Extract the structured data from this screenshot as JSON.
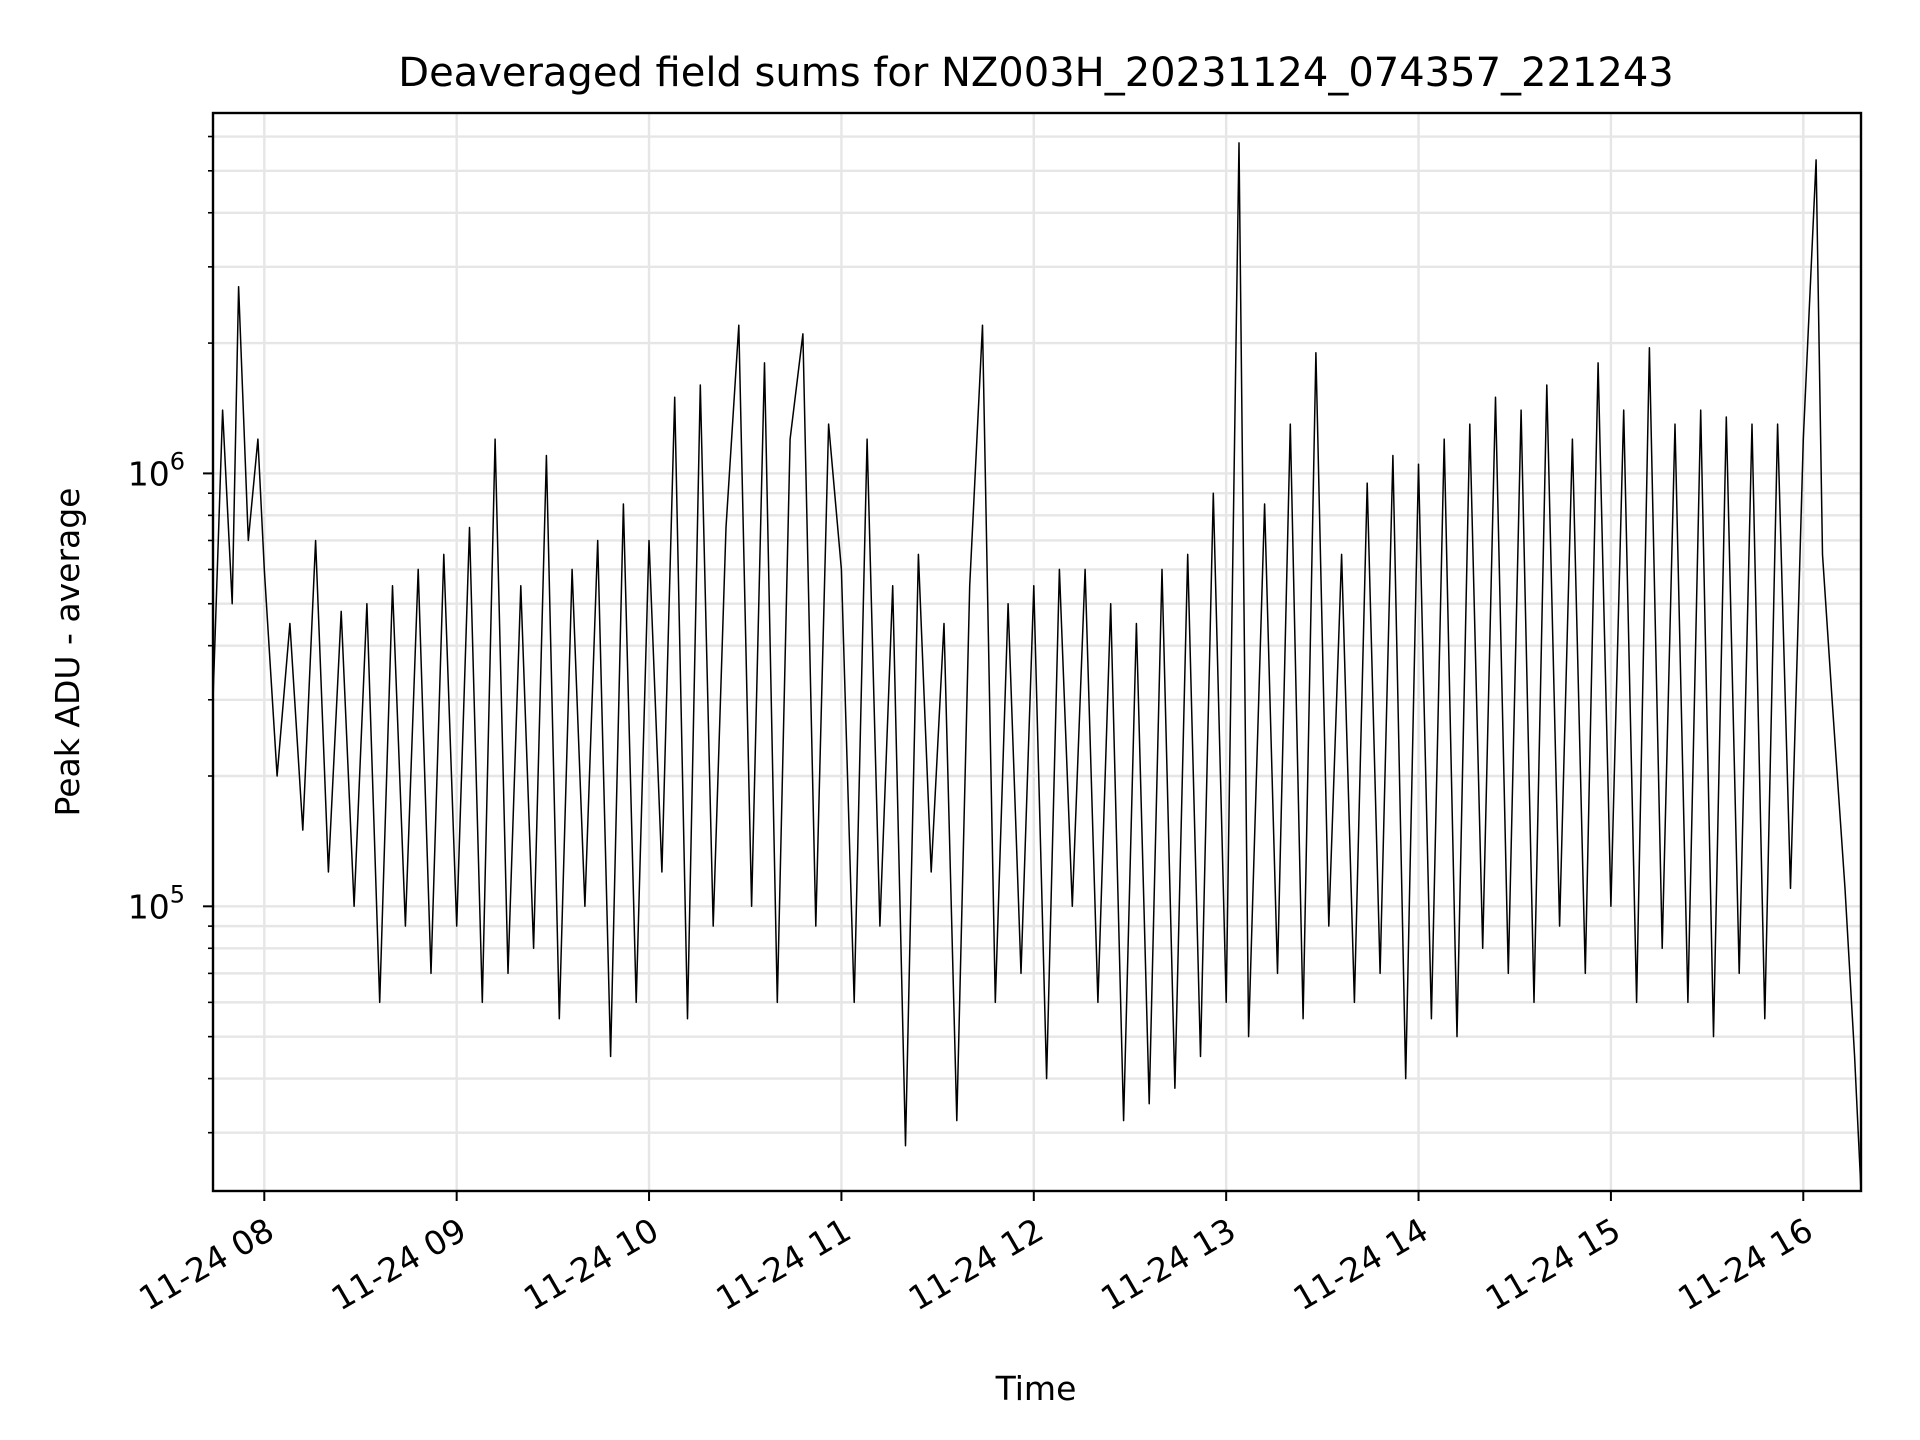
{
  "chart_data": {
    "type": "line",
    "title": "Deaveraged field sums for NZ003H_20231124_074357_221243",
    "xlabel": "Time",
    "ylabel": "Peak ADU - average",
    "y_scale": "log",
    "ylim": [
      22000,
      6800000
    ],
    "xlim": [
      "2023-11-24 07:44",
      "2023-11-24 16:18"
    ],
    "x_ticks": [
      {
        "value": "2023-11-24 08:00",
        "label": "11-24 08"
      },
      {
        "value": "2023-11-24 09:00",
        "label": "11-24 09"
      },
      {
        "value": "2023-11-24 10:00",
        "label": "11-24 10"
      },
      {
        "value": "2023-11-24 11:00",
        "label": "11-24 11"
      },
      {
        "value": "2023-11-24 12:00",
        "label": "11-24 12"
      },
      {
        "value": "2023-11-24 13:00",
        "label": "11-24 13"
      },
      {
        "value": "2023-11-24 14:00",
        "label": "11-24 14"
      },
      {
        "value": "2023-11-24 15:00",
        "label": "11-24 15"
      },
      {
        "value": "2023-11-24 16:00",
        "label": "11-24 16"
      }
    ],
    "y_ticks": [
      {
        "value": 100000,
        "base": "10",
        "exp": "5"
      },
      {
        "value": 1000000,
        "base": "10",
        "exp": "6"
      }
    ],
    "grid": true,
    "line_color": "#000000",
    "series": [
      {
        "x": [
          "2023-11-24 07:44",
          "2023-11-24 07:47",
          "2023-11-24 07:50",
          "2023-11-24 07:52",
          "2023-11-24 07:55",
          "2023-11-24 07:58",
          "2023-11-24 08:00",
          "2023-11-24 08:04",
          "2023-11-24 08:08",
          "2023-11-24 08:12",
          "2023-11-24 08:16",
          "2023-11-24 08:20",
          "2023-11-24 08:24",
          "2023-11-24 08:28",
          "2023-11-24 08:32",
          "2023-11-24 08:36",
          "2023-11-24 08:40",
          "2023-11-24 08:44",
          "2023-11-24 08:48",
          "2023-11-24 08:52",
          "2023-11-24 08:56",
          "2023-11-24 09:00",
          "2023-11-24 09:04",
          "2023-11-24 09:08",
          "2023-11-24 09:12",
          "2023-11-24 09:16",
          "2023-11-24 09:20",
          "2023-11-24 09:24",
          "2023-11-24 09:28",
          "2023-11-24 09:32",
          "2023-11-24 09:36",
          "2023-11-24 09:40",
          "2023-11-24 09:44",
          "2023-11-24 09:48",
          "2023-11-24 09:52",
          "2023-11-24 09:56",
          "2023-11-24 10:00",
          "2023-11-24 10:04",
          "2023-11-24 10:08",
          "2023-11-24 10:12",
          "2023-11-24 10:16",
          "2023-11-24 10:20",
          "2023-11-24 10:24",
          "2023-11-24 10:28",
          "2023-11-24 10:32",
          "2023-11-24 10:36",
          "2023-11-24 10:40",
          "2023-11-24 10:44",
          "2023-11-24 10:48",
          "2023-11-24 10:52",
          "2023-11-24 10:56",
          "2023-11-24 11:00",
          "2023-11-24 11:04",
          "2023-11-24 11:08",
          "2023-11-24 11:12",
          "2023-11-24 11:16",
          "2023-11-24 11:20",
          "2023-11-24 11:24",
          "2023-11-24 11:28",
          "2023-11-24 11:32",
          "2023-11-24 11:36",
          "2023-11-24 11:40",
          "2023-11-24 11:44",
          "2023-11-24 11:48",
          "2023-11-24 11:52",
          "2023-11-24 11:56",
          "2023-11-24 12:00",
          "2023-11-24 12:04",
          "2023-11-24 12:08",
          "2023-11-24 12:12",
          "2023-11-24 12:16",
          "2023-11-24 12:20",
          "2023-11-24 12:24",
          "2023-11-24 12:28",
          "2023-11-24 12:32",
          "2023-11-24 12:36",
          "2023-11-24 12:40",
          "2023-11-24 12:44",
          "2023-11-24 12:48",
          "2023-11-24 12:52",
          "2023-11-24 12:56",
          "2023-11-24 13:00",
          "2023-11-24 13:04",
          "2023-11-24 13:07",
          "2023-11-24 13:12",
          "2023-11-24 13:16",
          "2023-11-24 13:20",
          "2023-11-24 13:24",
          "2023-11-24 13:28",
          "2023-11-24 13:32",
          "2023-11-24 13:36",
          "2023-11-24 13:40",
          "2023-11-24 13:44",
          "2023-11-24 13:48",
          "2023-11-24 13:52",
          "2023-11-24 13:56",
          "2023-11-24 14:00",
          "2023-11-24 14:04",
          "2023-11-24 14:08",
          "2023-11-24 14:12",
          "2023-11-24 14:16",
          "2023-11-24 14:20",
          "2023-11-24 14:24",
          "2023-11-24 14:28",
          "2023-11-24 14:32",
          "2023-11-24 14:36",
          "2023-11-24 14:40",
          "2023-11-24 14:44",
          "2023-11-24 14:48",
          "2023-11-24 14:52",
          "2023-11-24 14:56",
          "2023-11-24 15:00",
          "2023-11-24 15:04",
          "2023-11-24 15:08",
          "2023-11-24 15:12",
          "2023-11-24 15:16",
          "2023-11-24 15:20",
          "2023-11-24 15:24",
          "2023-11-24 15:28",
          "2023-11-24 15:32",
          "2023-11-24 15:36",
          "2023-11-24 15:40",
          "2023-11-24 15:44",
          "2023-11-24 15:48",
          "2023-11-24 15:52",
          "2023-11-24 15:56",
          "2023-11-24 16:00",
          "2023-11-24 16:04",
          "2023-11-24 16:06",
          "2023-11-24 16:09",
          "2023-11-24 16:13",
          "2023-11-24 16:16",
          "2023-11-24 16:18"
        ],
        "y": [
          300000,
          1400000,
          500000,
          2700000,
          700000,
          1200000,
          600000,
          200000,
          450000,
          150000,
          700000,
          120000,
          480000,
          100000,
          500000,
          60000,
          550000,
          90000,
          600000,
          70000,
          650000,
          90000,
          750000,
          60000,
          1200000,
          70000,
          550000,
          80000,
          1100000,
          55000,
          600000,
          100000,
          700000,
          45000,
          850000,
          60000,
          700000,
          120000,
          1500000,
          55000,
          1600000,
          90000,
          750000,
          2200000,
          100000,
          1800000,
          60000,
          1200000,
          2100000,
          90000,
          1300000,
          600000,
          60000,
          1200000,
          90000,
          550000,
          28000,
          650000,
          120000,
          450000,
          32000,
          550000,
          2200000,
          60000,
          500000,
          70000,
          550000,
          40000,
          600000,
          100000,
          600000,
          60000,
          500000,
          32000,
          450000,
          35000,
          600000,
          38000,
          650000,
          45000,
          900000,
          60000,
          5800000,
          50000,
          850000,
          70000,
          1300000,
          55000,
          1900000,
          90000,
          650000,
          60000,
          950000,
          70000,
          1100000,
          40000,
          1050000,
          55000,
          1200000,
          50000,
          1300000,
          80000,
          1500000,
          70000,
          1400000,
          60000,
          1600000,
          90000,
          1200000,
          70000,
          1800000,
          100000,
          1400000,
          60000,
          1950000,
          80000,
          1300000,
          60000,
          1400000,
          50000,
          1350000,
          70000,
          1300000,
          55000,
          1300000,
          110000,
          1200000,
          5300000,
          650000,
          300000,
          110000,
          45000,
          22000
        ]
      }
    ]
  }
}
